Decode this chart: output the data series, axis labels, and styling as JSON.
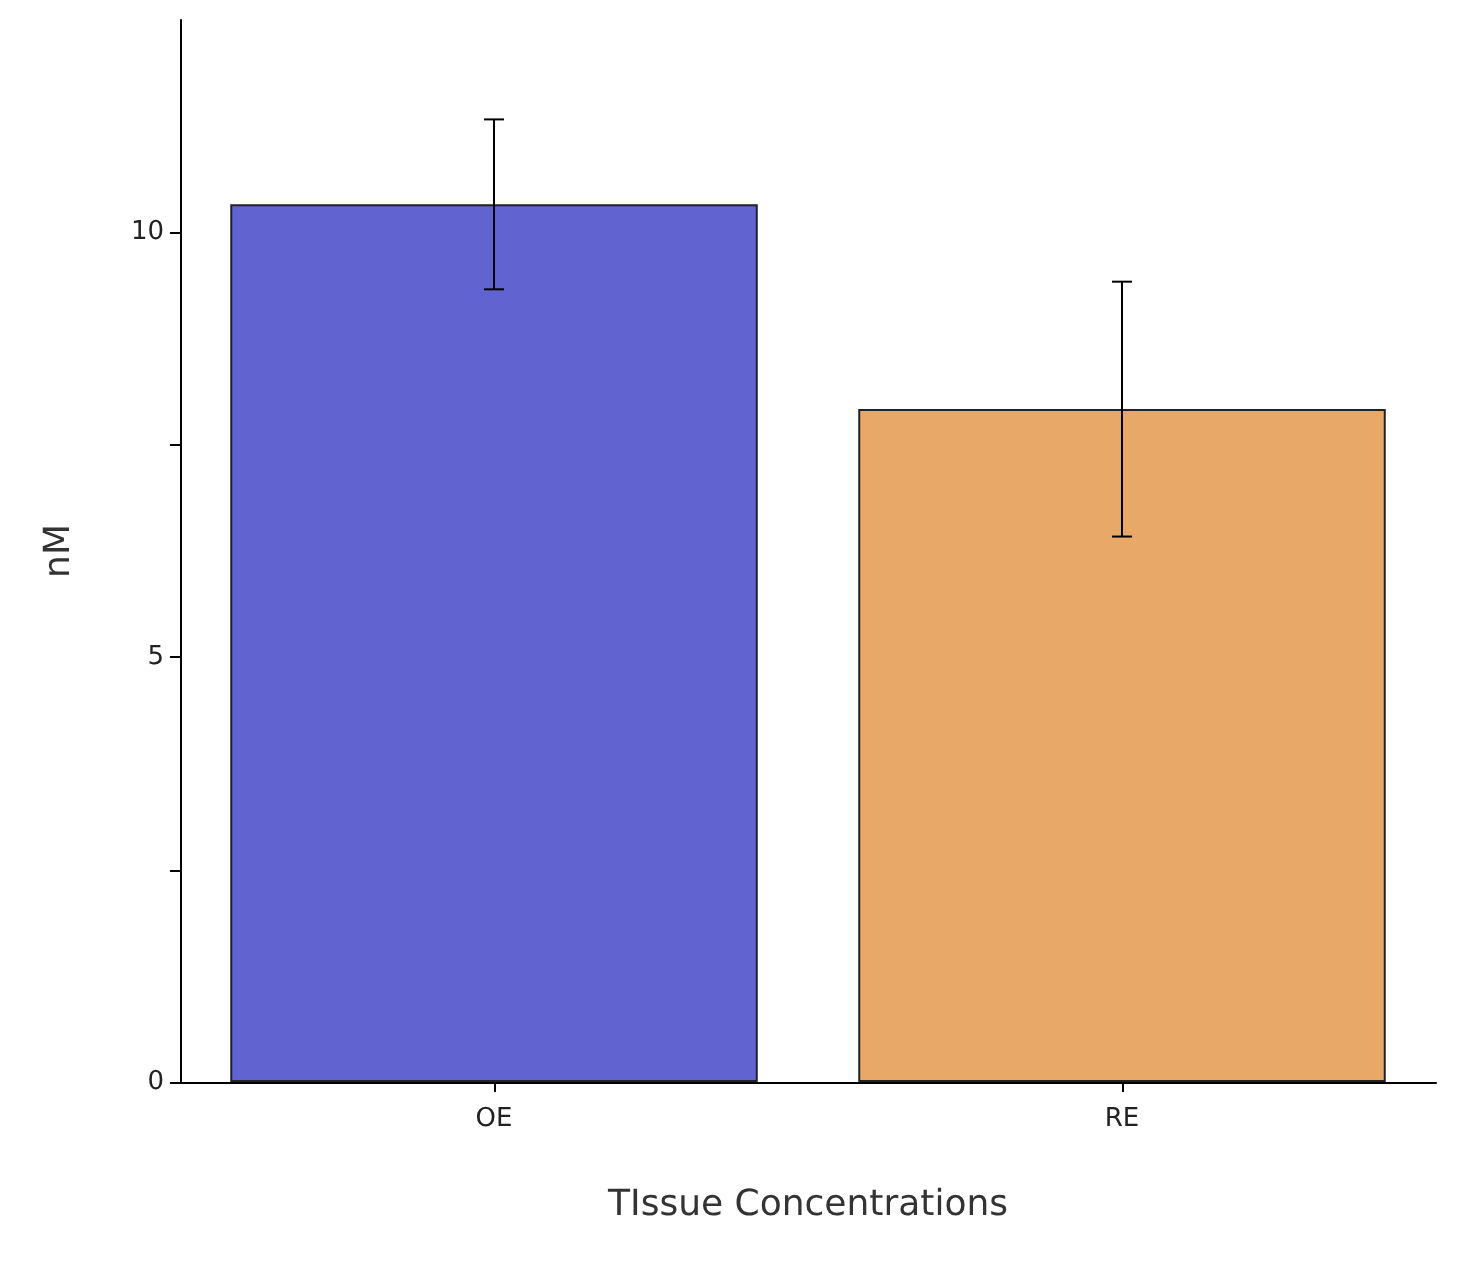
{
  "chart_data": {
    "type": "bar",
    "xlabel": "TIssue Concentrations",
    "ylabel": "nM",
    "categories": [
      "OE",
      "RE"
    ],
    "values": [
      10.33,
      7.92
    ],
    "colors": [
      "#6164d0",
      "#e8a868"
    ],
    "errors": [
      1.0,
      1.5
    ],
    "ylim": [
      0,
      12.5
    ],
    "yticks": [
      0,
      {
        "value": 2.5,
        "label": null
      },
      5,
      {
        "value": 7.5,
        "label": null
      },
      10
    ],
    "grid": false
  }
}
